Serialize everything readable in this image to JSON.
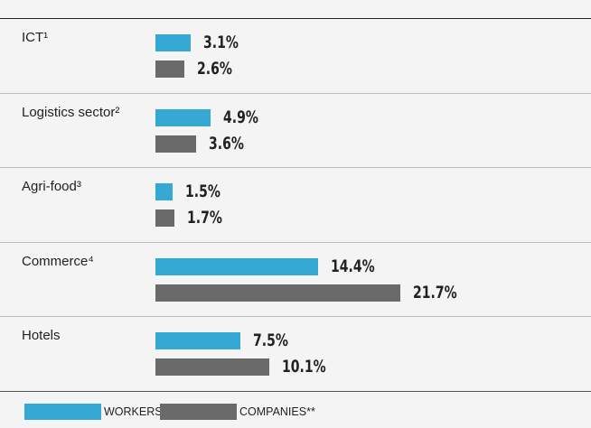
{
  "chart_data": {
    "type": "bar",
    "orientation": "horizontal",
    "categories": [
      "ICT¹",
      "Logistics sector²",
      "Agri-food³",
      "Commerce⁴",
      "Hotels"
    ],
    "series": [
      {
        "name": "WORKERS*",
        "color": "#35a8d4",
        "values": [
          3.1,
          4.9,
          1.5,
          14.4,
          7.5
        ],
        "value_labels": [
          "3.1%",
          "4.9%",
          "1.5%",
          "14.4%",
          "7.5%"
        ]
      },
      {
        "name": "COMPANIES**",
        "color": "#6a6a6a",
        "values": [
          2.6,
          3.6,
          1.7,
          21.7,
          10.1
        ],
        "value_labels": [
          "2.6%",
          "3.6%",
          "1.7%",
          "21.7%",
          "10.1%"
        ]
      }
    ]
  }
}
